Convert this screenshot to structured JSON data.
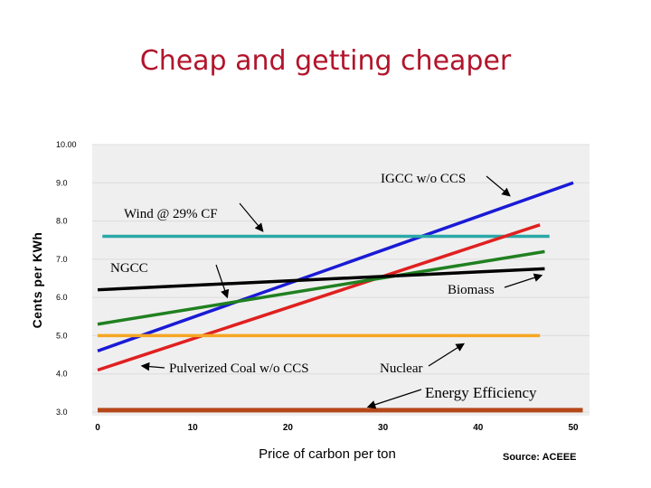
{
  "chart_data": {
    "type": "line",
    "title": "Cheap and getting cheaper",
    "xlabel": "Price of carbon per ton",
    "ylabel": "Cents per KWh",
    "source": "Source: ACEEE",
    "xlim": [
      0,
      50
    ],
    "ylim": [
      3.0,
      10.0
    ],
    "x_ticks": [
      "0",
      "10",
      "20",
      "30",
      "40",
      "50"
    ],
    "y_ticks": [
      "3.0",
      "4.0",
      "5.0",
      "6.0",
      "7.0",
      "8.0",
      "9.0",
      "10.00"
    ],
    "series": [
      {
        "name": "IGCC w/o CCS",
        "color": "#1a1ad6",
        "x": [
          0,
          50
        ],
        "y": [
          4.6,
          9.0
        ]
      },
      {
        "name": "Wind @ 29% CF",
        "color": "#2aa8a8",
        "x": [
          0.5,
          47.5
        ],
        "y": [
          7.6,
          7.6
        ]
      },
      {
        "name": "Pulverized Coal w/o CCS",
        "color": "#e02020",
        "x": [
          0,
          46.5
        ],
        "y": [
          4.1,
          7.9
        ]
      },
      {
        "name": "Biomass",
        "color": "#208020",
        "x": [
          0,
          47
        ],
        "y": [
          5.3,
          7.2
        ]
      },
      {
        "name": "NGCC",
        "color": "#000000",
        "x": [
          0,
          47
        ],
        "y": [
          6.2,
          6.75
        ]
      },
      {
        "name": "Nuclear",
        "color": "#f5a623",
        "x": [
          0,
          46.5
        ],
        "y": [
          5.0,
          5.0
        ]
      },
      {
        "name": "Energy Efficiency",
        "color": "#b5481a",
        "x": [
          0,
          51
        ],
        "y": [
          3.05,
          3.05
        ]
      }
    ],
    "annotations": {
      "igcc": "IGCC w/o CCS",
      "wind": "Wind @ 29% CF",
      "ngcc": "NGCC",
      "biomass": "Biomass",
      "pc": "Pulverized Coal w/o CCS",
      "nuclear": "Nuclear",
      "ee": "Energy Efficiency"
    }
  }
}
